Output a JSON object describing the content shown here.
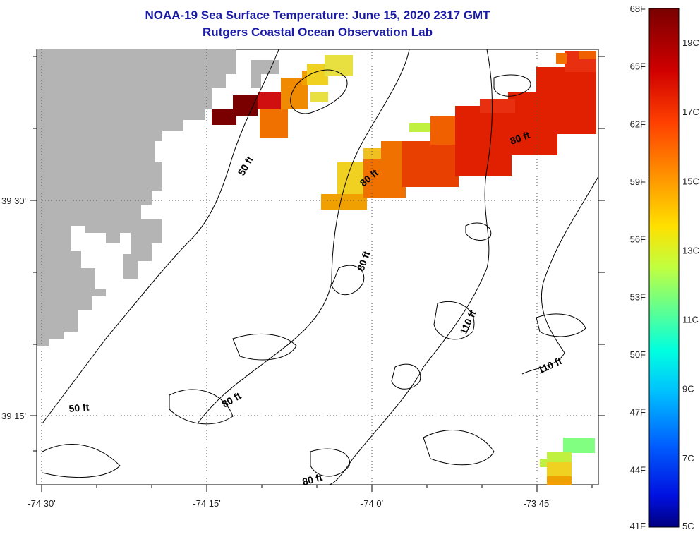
{
  "title": {
    "line1": "NOAA-19 Sea Surface Temperature:  June 15, 2020 2317 GMT",
    "line2": "Rutgers Coastal Ocean Observation Lab"
  },
  "axes": {
    "x_ticks": [
      "-74 30'",
      "-74 15'",
      "-74 0'",
      "-73 45'"
    ],
    "y_ticks": [
      "39 30'",
      "39 15'"
    ]
  },
  "contours": [
    "50 ft",
    "80 ft",
    "80 ft",
    "80 ft",
    "110 ft",
    "110 ft",
    "50 ft",
    "80 ft",
    "80 ft"
  ],
  "colorbar": {
    "f_labels": [
      "68F",
      "65F",
      "62F",
      "59F",
      "56F",
      "53F",
      "50F",
      "47F",
      "44F",
      "41F"
    ],
    "c_labels": [
      "19C",
      "17C",
      "15C",
      "13C",
      "11C",
      "9C",
      "7C",
      "5C"
    ]
  },
  "colors": {
    "land": "#b4b4b4",
    "title": "#1a1aa6",
    "dark_red": "#7a0000",
    "red": "#e02000",
    "orange": "#f07000",
    "yellow": "#f0e020",
    "green": "#80ff80"
  }
}
